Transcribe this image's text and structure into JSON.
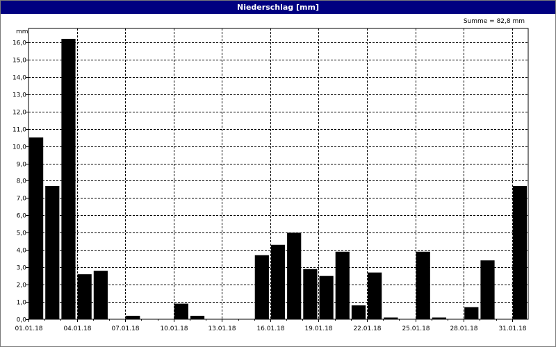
{
  "window": {
    "title": "Niederschlag [mm]"
  },
  "sum_label": "Summe = 82,8 mm",
  "chart_data": {
    "type": "bar",
    "title": "Niederschlag [mm]",
    "ylabel": "mm",
    "xlabel": "",
    "ylim": [
      0,
      16.8
    ],
    "yticks": [
      0,
      1,
      2,
      3,
      4,
      5,
      6,
      7,
      8,
      9,
      10,
      11,
      12,
      13,
      14,
      15,
      16
    ],
    "ytick_labels": [
      "0,0",
      "1,0",
      "2,0",
      "3,0",
      "4,0",
      "5,0",
      "6,0",
      "7,0",
      "8,0",
      "9,0",
      "10,0",
      "11,0",
      "12,0",
      "13,0",
      "14,0",
      "15,0",
      "16,0"
    ],
    "x_tick_labels": [
      "01.01.18",
      "04.01.18",
      "07.01.18",
      "10.01.18",
      "13.01.18",
      "16.01.18",
      "19.01.18",
      "22.01.18",
      "25.01.18",
      "28.01.18",
      "31.01.18"
    ],
    "categories": [
      "01.01.18",
      "02.01.18",
      "03.01.18",
      "04.01.18",
      "05.01.18",
      "06.01.18",
      "07.01.18",
      "08.01.18",
      "09.01.18",
      "10.01.18",
      "11.01.18",
      "12.01.18",
      "13.01.18",
      "14.01.18",
      "15.01.18",
      "16.01.18",
      "17.01.18",
      "18.01.18",
      "19.01.18",
      "20.01.18",
      "21.01.18",
      "22.01.18",
      "23.01.18",
      "24.01.18",
      "25.01.18",
      "26.01.18",
      "27.01.18",
      "28.01.18",
      "29.01.18",
      "30.01.18",
      "31.01.18"
    ],
    "values": [
      10.5,
      7.7,
      16.2,
      2.6,
      2.8,
      0,
      0.2,
      0,
      0,
      0.9,
      0.2,
      0,
      0,
      0,
      3.7,
      4.3,
      5.0,
      2.9,
      2.5,
      3.9,
      0.8,
      2.7,
      0.1,
      0,
      3.9,
      0.1,
      0,
      0.7,
      3.4,
      0,
      7.7
    ],
    "grid": true,
    "bar_color": "#000000"
  }
}
